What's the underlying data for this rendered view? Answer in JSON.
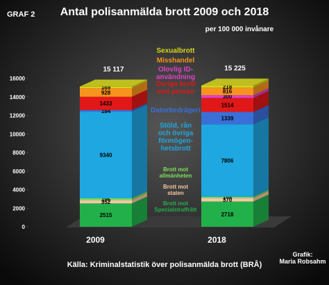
{
  "chart_data": {
    "type": "bar3d_stacked",
    "label": "GRAF 2",
    "title": "Antal polisanmälda brott 2009 och 2018",
    "subtitle": "per 100 000 invånare",
    "categories": [
      "2009",
      "2018"
    ],
    "totals": [
      "15 117",
      "15 225"
    ],
    "ylim": [
      0,
      16000
    ],
    "yticks": [
      0,
      2000,
      4000,
      6000,
      8000,
      10000,
      12000,
      14000,
      16000
    ],
    "series": [
      {
        "name": "Brott mot\nSpecialstraffrätt",
        "color": "#22b04b",
        "values": [
          2515,
          2718
        ]
      },
      {
        "name": "Brott mot\nstaten",
        "color": "#f4c7a1",
        "values": [
          352,
          370
        ]
      },
      {
        "name": "Brott mot\nallmänheten",
        "color": "#7ee05a",
        "values": [
          196,
          144
        ]
      },
      {
        "name": "Stöld, rån\noch övriga\nförmögen-\nhetsbrott",
        "color": "#1ea7e1",
        "values": [
          9340,
          7806
        ]
      },
      {
        "name": "Datorbedrägeri",
        "color": "#3a6fd8",
        "values": [
          184,
          1339
        ]
      },
      {
        "name": "Övriga brott\nmot person",
        "color": "#e01818",
        "values": [
          1433,
          1514
        ]
      },
      {
        "name": "Olovlig ID-\nanvändning",
        "color": "#e040c8",
        "values": [
          null,
          300
        ]
      },
      {
        "name": "Misshandel",
        "color": "#f7941d",
        "values": [
          928,
          816
        ]
      },
      {
        "name": "Sexualbrott",
        "color": "#d6d61a",
        "values": [
          169,
          218
        ]
      }
    ],
    "source": "Källa: Kriminalstatistik över polisanmälda brott (BRÅ)",
    "credit": "Grafik:\nMaria Robsahm"
  }
}
